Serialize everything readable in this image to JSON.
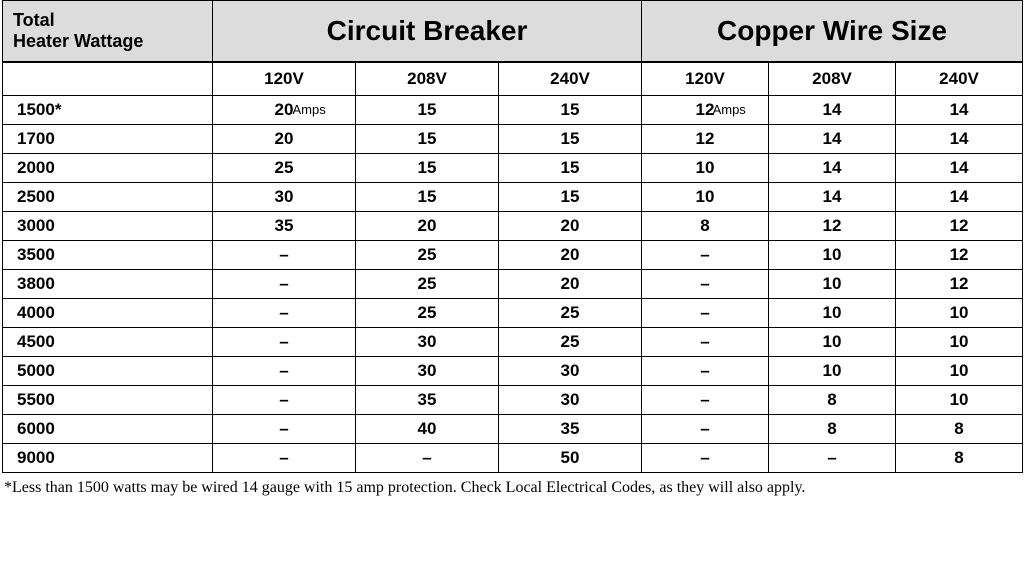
{
  "table": {
    "header": {
      "wattage_line1": "Total",
      "wattage_line2": "Heater Wattage",
      "group1": "Circuit Breaker",
      "group2": "Copper Wire Size"
    },
    "subheaders": {
      "cb": [
        "120V",
        "208V",
        "240V"
      ],
      "wire": [
        "120V",
        "208V",
        "240V"
      ]
    },
    "unit_label_cb": "Amps",
    "unit_label_wire": "Amps",
    "rows": [
      {
        "wattage": "1500*",
        "cb": [
          "20",
          "15",
          "15"
        ],
        "wire": [
          "12",
          "14",
          "14"
        ],
        "show_units": true
      },
      {
        "wattage": "1700",
        "cb": [
          "20",
          "15",
          "15"
        ],
        "wire": [
          "12",
          "14",
          "14"
        ]
      },
      {
        "wattage": "2000",
        "cb": [
          "25",
          "15",
          "15"
        ],
        "wire": [
          "10",
          "14",
          "14"
        ]
      },
      {
        "wattage": "2500",
        "cb": [
          "30",
          "15",
          "15"
        ],
        "wire": [
          "10",
          "14",
          "14"
        ]
      },
      {
        "wattage": "3000",
        "cb": [
          "35",
          "20",
          "20"
        ],
        "wire": [
          "8",
          "12",
          "12"
        ]
      },
      {
        "wattage": "3500",
        "cb": [
          "–",
          "25",
          "20"
        ],
        "wire": [
          "–",
          "10",
          "12"
        ]
      },
      {
        "wattage": "3800",
        "cb": [
          "–",
          "25",
          "20"
        ],
        "wire": [
          "–",
          "10",
          "12"
        ]
      },
      {
        "wattage": "4000",
        "cb": [
          "–",
          "25",
          "25"
        ],
        "wire": [
          "–",
          "10",
          "10"
        ]
      },
      {
        "wattage": "4500",
        "cb": [
          "–",
          "30",
          "25"
        ],
        "wire": [
          "–",
          "10",
          "10"
        ]
      },
      {
        "wattage": "5000",
        "cb": [
          "–",
          "30",
          "30"
        ],
        "wire": [
          "–",
          "10",
          "10"
        ]
      },
      {
        "wattage": "5500",
        "cb": [
          "–",
          "35",
          "30"
        ],
        "wire": [
          "–",
          "8",
          "10"
        ]
      },
      {
        "wattage": "6000",
        "cb": [
          "–",
          "40",
          "35"
        ],
        "wire": [
          "–",
          "8",
          "8"
        ]
      },
      {
        "wattage": "9000",
        "cb": [
          "–",
          "–",
          "50"
        ],
        "wire": [
          "–",
          "–",
          "8"
        ]
      }
    ],
    "footnote": "*Less than 1500 watts may be wired 14 gauge with 15 amp protection. Check Local Electrical Codes, as they will also apply.",
    "colors": {
      "header_bg": "#dcdcdc",
      "border": "#000000",
      "text": "#000000",
      "background": "#ffffff"
    },
    "fonts": {
      "header_group_size_pt": 21,
      "header_wattage_size_pt": 14,
      "sub_size_pt": 13,
      "cell_size_pt": 13,
      "footnote_size_pt": 12
    }
  }
}
